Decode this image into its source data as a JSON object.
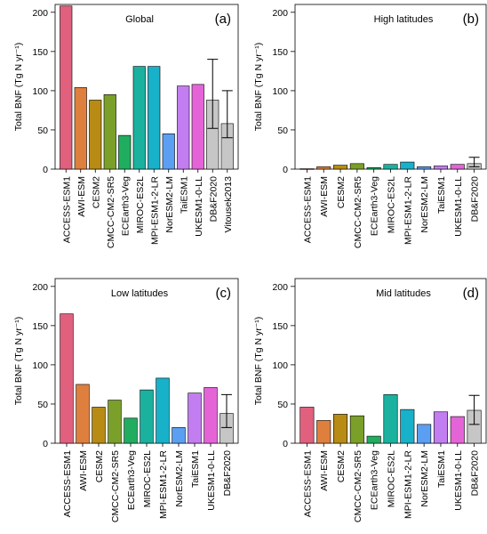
{
  "colors": {
    "ACCESS-ESM1": "#e0607e",
    "AWI-ESM": "#df7f3d",
    "CESM2": "#b78b14",
    "CMCC-CM2-SR5": "#7ba02a",
    "ECEarth3-Veg": "#20ad5f",
    "MIROC-ES2L": "#1ab19f",
    "MPI-ESM1-2-LR": "#17b1c9",
    "NorESM2-LM": "#5b9ff2",
    "TaiESM1": "#c27ef0",
    "UKESM1-0-LL": "#e464d8",
    "DB&F2020": "#c6c6c6",
    "Vitousek2013": "#c6c6c6"
  },
  "chart_data": [
    {
      "type": "bar",
      "panel": "(a)",
      "title": "Global",
      "ylabel": "Total BNF (Tg N yr⁻¹)",
      "ylim": [
        0,
        210
      ],
      "yticks": [
        "0",
        "50",
        "100",
        "150",
        "200"
      ],
      "categories": [
        "ACCESS-ESM1",
        "AWI-ESM",
        "CESM2",
        "CMCC-CM2-SR5",
        "ECEarth3-Veg",
        "MIROC-ES2L",
        "MPI-ESM1-2-LR",
        "NorESM2-LM",
        "TaiESM1",
        "UKESM1-0-LL",
        "DB&F2020",
        "Vitousek2013"
      ],
      "values": [
        208,
        104,
        88,
        95,
        43,
        131,
        131,
        45,
        106,
        108,
        88,
        58
      ],
      "error_bars": [
        {
          "category": "DB&F2020",
          "low": 52,
          "high": 140
        },
        {
          "category": "Vitousek2013",
          "low": 40,
          "high": 100
        }
      ]
    },
    {
      "type": "bar",
      "panel": "(b)",
      "title": "High latitudes",
      "ylabel": "Total BNF (Tg N yr⁻¹)",
      "ylim": [
        0,
        210
      ],
      "yticks": [
        "0",
        "50",
        "100",
        "150",
        "200"
      ],
      "categories": [
        "ACCESS-ESM1",
        "AWI-ESM",
        "CESM2",
        "CMCC-CM2-SR5",
        "ECEarth3-Veg",
        "MIROC-ES2L",
        "MPI-ESM1-2-LR",
        "NorESM2-LM",
        "TaiESM1",
        "UKESM1-0-LL",
        "DB&F2020"
      ],
      "values": [
        0.5,
        3,
        5,
        7,
        2,
        6,
        9,
        3,
        4,
        6,
        7
      ],
      "error_bars": [
        {
          "category": "DB&F2020",
          "low": 3,
          "high": 15
        }
      ]
    },
    {
      "type": "bar",
      "panel": "(c)",
      "title": "Low latitudes",
      "ylabel": "Total BNF (Tg N yr⁻¹)",
      "ylim": [
        0,
        210
      ],
      "yticks": [
        "0",
        "50",
        "100",
        "150",
        "200"
      ],
      "categories": [
        "ACCESS-ESM1",
        "AWI-ESM",
        "CESM2",
        "CMCC-CM2-SR5",
        "ECEarth3-Veg",
        "MIROC-ES2L",
        "MPI-ESM1-2-LR",
        "NorESM2-LM",
        "TaiESM1",
        "UKESM1-0-LL",
        "DB&F2020"
      ],
      "values": [
        165,
        75,
        46,
        55,
        32,
        68,
        83,
        20,
        64,
        71,
        38
      ],
      "error_bars": [
        {
          "category": "DB&F2020",
          "low": 20,
          "high": 62
        }
      ]
    },
    {
      "type": "bar",
      "panel": "(d)",
      "title": "Mid latitudes",
      "ylabel": "Total BNF (Tg N yr⁻¹)",
      "ylim": [
        0,
        210
      ],
      "yticks": [
        "0",
        "50",
        "100",
        "150",
        "200"
      ],
      "categories": [
        "ACCESS-ESM1",
        "AWI-ESM",
        "CESM2",
        "CMCC-CM2-SR5",
        "ECEarth3-Veg",
        "MIROC-ES2L",
        "MPI-ESM1-2-LR",
        "NorESM2-LM",
        "TaiESM1",
        "UKESM1-0-LL",
        "DB&F2020"
      ],
      "values": [
        46,
        29,
        37,
        35,
        9,
        62,
        43,
        24,
        40,
        34,
        42
      ],
      "error_bars": [
        {
          "category": "DB&F2020",
          "low": 24,
          "high": 61
        }
      ]
    }
  ]
}
